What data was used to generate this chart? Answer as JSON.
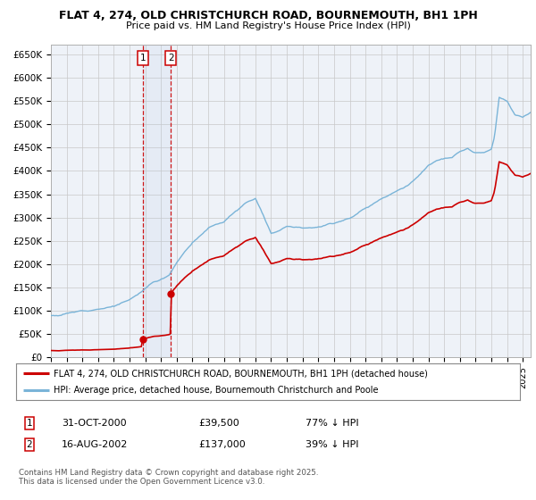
{
  "title1": "FLAT 4, 274, OLD CHRISTCHURCH ROAD, BOURNEMOUTH, BH1 1PH",
  "title2": "Price paid vs. HM Land Registry's House Price Index (HPI)",
  "ylim": [
    0,
    670000
  ],
  "yticks": [
    0,
    50000,
    100000,
    150000,
    200000,
    250000,
    300000,
    350000,
    400000,
    450000,
    500000,
    550000,
    600000,
    650000
  ],
  "ytick_labels": [
    "£0",
    "£50K",
    "£100K",
    "£150K",
    "£200K",
    "£250K",
    "£300K",
    "£350K",
    "£400K",
    "£450K",
    "£500K",
    "£550K",
    "£600K",
    "£650K"
  ],
  "hpi_color": "#7ab4d8",
  "price_color": "#cc0000",
  "chart_bg": "#eef2f8",
  "grid_color": "#c8c8c8",
  "transaction1_x": 2000.833,
  "transaction1_y": 39500,
  "transaction2_x": 2002.624,
  "transaction2_y": 137000,
  "legend_line1": "FLAT 4, 274, OLD CHRISTCHURCH ROAD, BOURNEMOUTH, BH1 1PH (detached house)",
  "legend_line2": "HPI: Average price, detached house, Bournemouth Christchurch and Poole",
  "table_row1": [
    "1",
    "31-OCT-2000",
    "£39,500",
    "77% ↓ HPI"
  ],
  "table_row2": [
    "2",
    "16-AUG-2002",
    "£137,000",
    "39% ↓ HPI"
  ],
  "footnote": "Contains HM Land Registry data © Crown copyright and database right 2025.\nThis data is licensed under the Open Government Licence v3.0.",
  "xmin": 1995.0,
  "xmax": 2025.5,
  "hpi_seed": 12,
  "price_seed": 34
}
